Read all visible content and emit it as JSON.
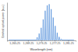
{
  "chart_data": {
    "type": "line",
    "x_label": "Wavelength (nm)",
    "y_label": "Emitted optical power (a.u.)",
    "x": [
      1263.5,
      1271.85,
      1272.0,
      1272.15,
      1272.45,
      1272.6,
      1272.75,
      1273.05,
      1273.2,
      1273.35,
      1273.65,
      1273.8,
      1273.95,
      1274.25,
      1274.4,
      1274.55,
      1274.85,
      1275.0,
      1275.15,
      1275.45,
      1275.6,
      1275.75,
      1276.05,
      1276.2,
      1276.35,
      1276.65,
      1276.8,
      1276.95,
      1277.25,
      1277.4,
      1277.55,
      1277.85,
      1278.0,
      1278.15,
      1278.45,
      1278.6,
      1278.75,
      1279.05,
      1279.2,
      1279.35,
      1283
    ],
    "values": [
      0.01,
      0.01,
      0.08,
      0.01,
      0.01,
      0.18,
      0.01,
      0.01,
      0.33,
      0.01,
      0.01,
      0.55,
      0.01,
      0.01,
      0.78,
      0.01,
      0.01,
      0.92,
      0.01,
      0.01,
      0.95,
      0.01,
      0.01,
      0.82,
      0.01,
      0.01,
      0.6,
      0.01,
      0.01,
      0.38,
      0.01,
      0.01,
      0.2,
      0.01,
      0.01,
      0.09,
      0.01,
      0.01,
      0.04,
      0.01,
      0.01
    ],
    "color": "#3a7fd5",
    "xlim": [
      1263,
      1283.5
    ],
    "xticks": [
      {
        "value": 1265.25,
        "label": "1,265.25"
      },
      {
        "value": 1269.25,
        "label": "1,269.25"
      },
      {
        "value": 1273.25,
        "label": "1,273.25"
      },
      {
        "value": 1277.25,
        "label": "1,277.25"
      },
      {
        "value": 1281.25,
        "label": "1,281.25"
      }
    ],
    "ylim": [
      0,
      1
    ],
    "tick_labels": "x"
  }
}
